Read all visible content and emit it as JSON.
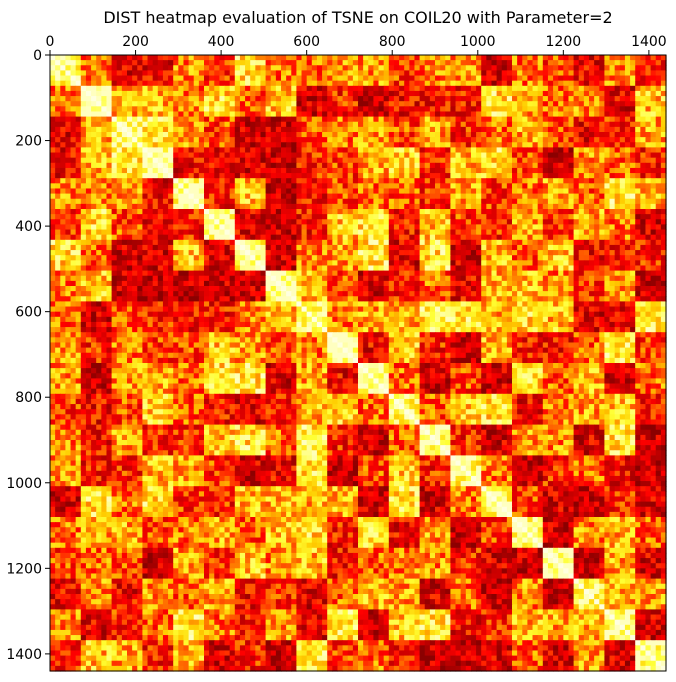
{
  "chart_data": {
    "type": "heatmap",
    "title": "DIST heatmap evaluation of TSNE on COIL20 with Parameter=2",
    "xlabel": "",
    "ylabel": "",
    "n": 1440,
    "xlim": [
      0,
      1440
    ],
    "ylim": [
      1440,
      0
    ],
    "x_ticks": [
      0,
      200,
      400,
      600,
      800,
      1000,
      1200,
      1400
    ],
    "y_ticks": [
      0,
      200,
      400,
      600,
      800,
      1000,
      1200,
      1400
    ],
    "x_tick_position": "top",
    "colormap": "hot",
    "colormap_stops": [
      "#8b0000",
      "#cc0000",
      "#ff0000",
      "#ff6600",
      "#ffcc00",
      "#ffff33",
      "#ffffc0"
    ],
    "diagonal_color": "#ffffe0",
    "block_size": 72,
    "block_boundaries": [
      0,
      72,
      144,
      216,
      288,
      360,
      432,
      504,
      576,
      648,
      720,
      792,
      864,
      936,
      1008,
      1080,
      1152,
      1224,
      1296,
      1368,
      1440
    ],
    "block_mean_distance_note": "",
    "grid": false,
    "legend": "none"
  }
}
